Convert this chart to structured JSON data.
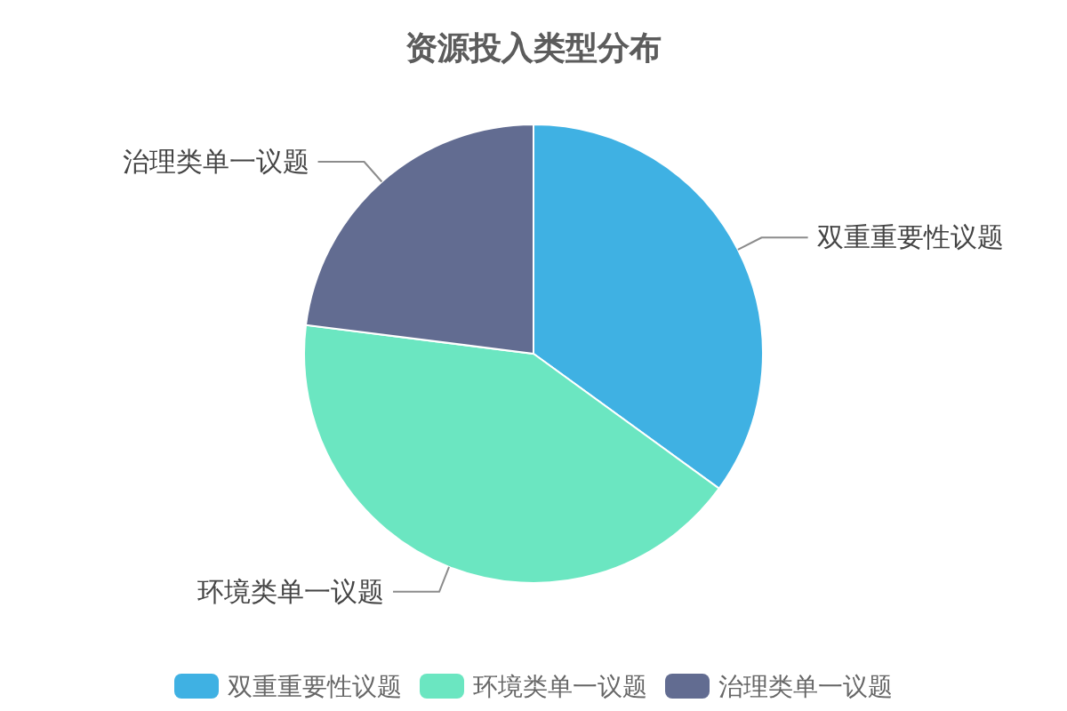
{
  "chart_data": {
    "type": "pie",
    "title": "资源投入类型分布",
    "categories": [
      "双重重要性议题",
      "环境类单一议题",
      "治理类单一议题"
    ],
    "values": [
      35,
      42,
      23
    ],
    "colors": [
      "#3fb1e3",
      "#6be6c1",
      "#626c91"
    ],
    "legend": "bottom"
  }
}
